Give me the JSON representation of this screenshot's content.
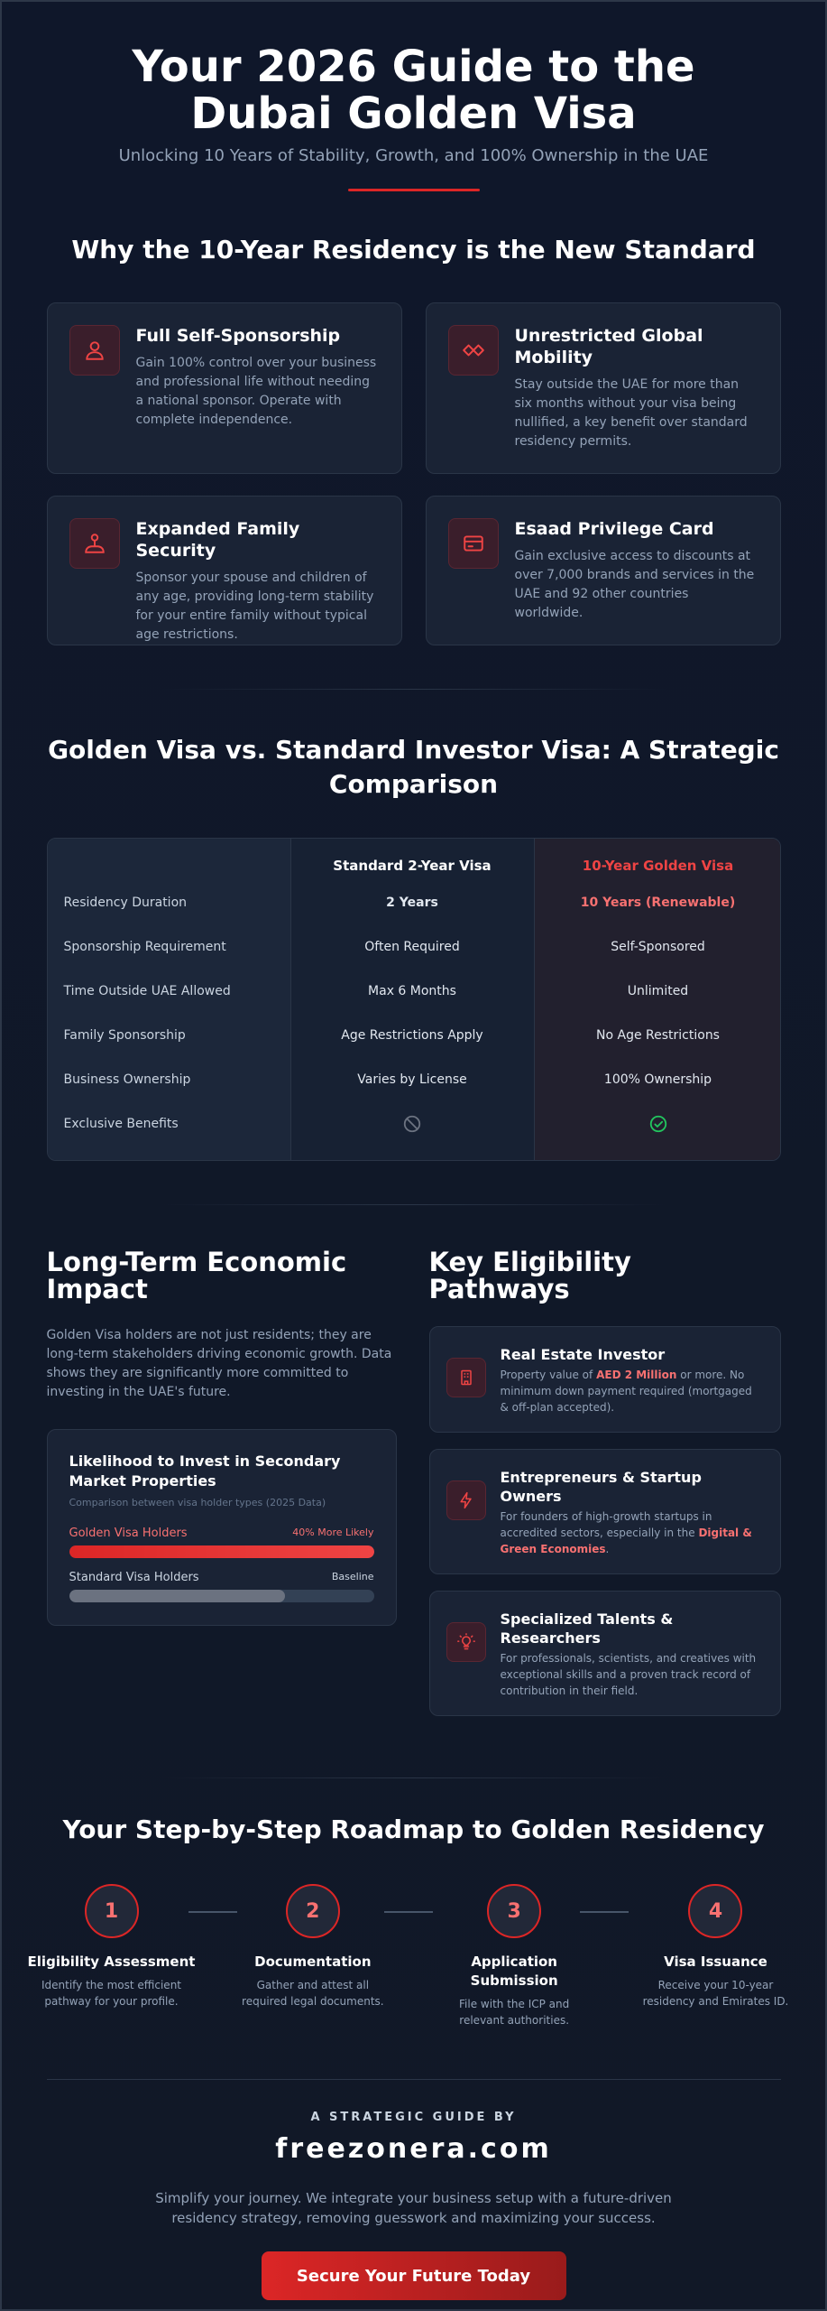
{
  "hero": {
    "title": "Your 2026 Guide to the Dubai Golden Visa",
    "subtitle": "Unlocking 10 Years of Stability, Growth, and 100% Ownership in the UAE"
  },
  "benefits": {
    "title": "Why the 10-Year Residency is the New Standard",
    "items": [
      {
        "icon": "user-icon",
        "title": "Full Self-Sponsorship",
        "text": "Gain 100% control over your business and professional life without needing a national sponsor. Operate with complete independence."
      },
      {
        "icon": "global-mobility-icon",
        "title": "Unrestricted Global Mobility",
        "text": "Stay outside the UAE for more than six months without your visa being nullified, a key benefit over standard residency permits."
      },
      {
        "icon": "family-icon",
        "title": "Expanded Family Security",
        "text": "Sponsor your spouse and children of any age, providing long-term stability for your entire family without typical age restrictions."
      },
      {
        "icon": "card-icon",
        "title": "Esaad Privilege Card",
        "text": "Gain exclusive access to discounts at over 7,000 brands and services in the UAE and 92 other countries worldwide."
      }
    ]
  },
  "comparison": {
    "title": "Golden Visa vs. Standard Investor Visa: A Strategic Comparison",
    "headers": [
      "",
      "Standard 2-Year Visa",
      "10-Year Golden Visa"
    ],
    "rows": [
      {
        "label": "Residency Duration",
        "standard": "2 Years",
        "golden": "10 Years (Renewable)"
      },
      {
        "label": "Sponsorship Requirement",
        "standard": "Often Required",
        "golden": "Self-Sponsored"
      },
      {
        "label": "Time Outside UAE Allowed",
        "standard": "Max 6 Months",
        "golden": "Unlimited"
      },
      {
        "label": "Family Sponsorship",
        "standard": "Age Restrictions Apply",
        "golden": "No Age Restrictions"
      },
      {
        "label": "Business Ownership",
        "standard": "Varies by License",
        "golden": "100% Ownership"
      },
      {
        "label": "Exclusive Benefits",
        "standard_icon": "ban-icon",
        "golden_icon": "check-circle-icon"
      }
    ]
  },
  "impact": {
    "title": "Long-Term Economic Impact",
    "text": "Golden Visa holders are not just residents; they are long-term stakeholders driving economic growth. Data shows they are significantly more committed to investing in the UAE's future.",
    "card": {
      "title": "Likelihood to Invest in Secondary Market Properties",
      "note": "Comparison between visa holder types (2025 Data)",
      "bars": [
        {
          "name": "Golden Visa Holders",
          "meta": "40% More Likely",
          "value": 1.0
        },
        {
          "name": "Standard Visa Holders",
          "meta": "Baseline",
          "value": 0.71
        }
      ]
    }
  },
  "pathways": {
    "title": "Key Eligibility Pathways",
    "items": [
      {
        "icon": "building-icon",
        "title": "Real Estate Investor",
        "text_pre": "Property value of ",
        "highlight": "AED 2 Million",
        "text_post": " or more. No minimum down payment required (mortgaged & off-plan accepted)."
      },
      {
        "icon": "lightning-icon",
        "title": "Entrepreneurs & Startup Owners",
        "text_pre": "For founders of high-growth startups in accredited sectors, especially in the ",
        "highlight": "Digital & Green Economies",
        "text_post": "."
      },
      {
        "icon": "lightbulb-icon",
        "title": "Specialized Talents & Researchers",
        "text_pre": "For professionals, scientists, and creatives with exceptional skills and a proven track record of contribution in their field.",
        "highlight": "",
        "text_post": ""
      }
    ]
  },
  "roadmap": {
    "title": "Your Step-by-Step Roadmap to Golden Residency",
    "steps": [
      {
        "num": "1",
        "title": "Eligibility Assessment",
        "text": "Identify the most efficient pathway for your profile."
      },
      {
        "num": "2",
        "title": "Documentation",
        "text": "Gather and attest all required legal documents."
      },
      {
        "num": "3",
        "title": "Application Submission",
        "text": "File with the ICP and relevant authorities."
      },
      {
        "num": "4",
        "title": "Visa Issuance",
        "text": "Receive your 10-year residency and Emirates ID."
      }
    ]
  },
  "footer": {
    "kicker": "A STRATEGIC GUIDE BY",
    "brand": "freezonera.com",
    "tagline": "Simplify your journey. We integrate your business setup with a future-driven residency strategy, removing guesswork and maximizing your success.",
    "cta": "Secure Your Future Today"
  },
  "colors": {
    "accent": "#dc2626",
    "background": "#0f172a",
    "success": "#22c55e"
  }
}
